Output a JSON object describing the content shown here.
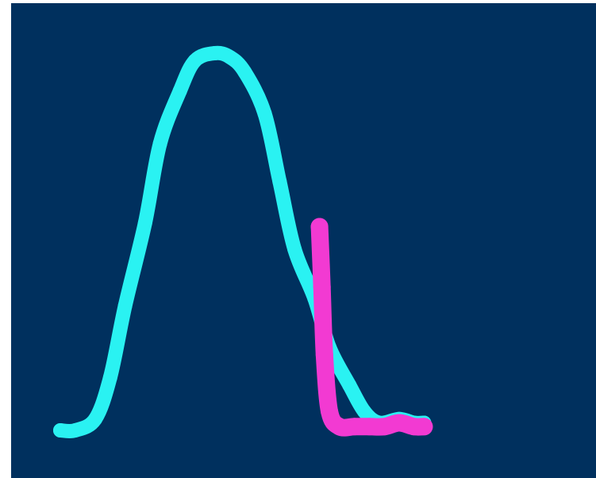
{
  "colors": {
    "frame": "#ffffff",
    "plot_background": "#00305e",
    "curve": "#2af2f2",
    "drop": "#f23ad2"
  },
  "chart_data": {
    "type": "line",
    "title": "",
    "xlabel": "",
    "ylabel": "",
    "grid": false,
    "legend": "none",
    "xlim": [
      0,
      100
    ],
    "ylim": [
      0,
      100
    ],
    "series": [
      {
        "color_key": "curve",
        "x": [
          0,
          3,
          7,
          10,
          13,
          17,
          20,
          24,
          27,
          31,
          34,
          37,
          41,
          44,
          47,
          51,
          54,
          58,
          61,
          64,
          68,
          71,
          73
        ],
        "y": [
          0,
          0,
          3,
          14,
          33,
          55,
          76,
          90,
          98,
          100,
          99,
          95,
          84,
          66,
          48,
          35,
          22,
          12,
          5,
          2,
          3,
          2,
          2
        ]
      },
      {
        "color_key": "drop",
        "x": [
          52,
          52.5,
          53,
          54,
          56,
          59,
          62,
          65,
          68,
          71,
          73
        ],
        "y": [
          54,
          38,
          20,
          5,
          1,
          1,
          1,
          1,
          2,
          1,
          1
        ]
      }
    ]
  }
}
